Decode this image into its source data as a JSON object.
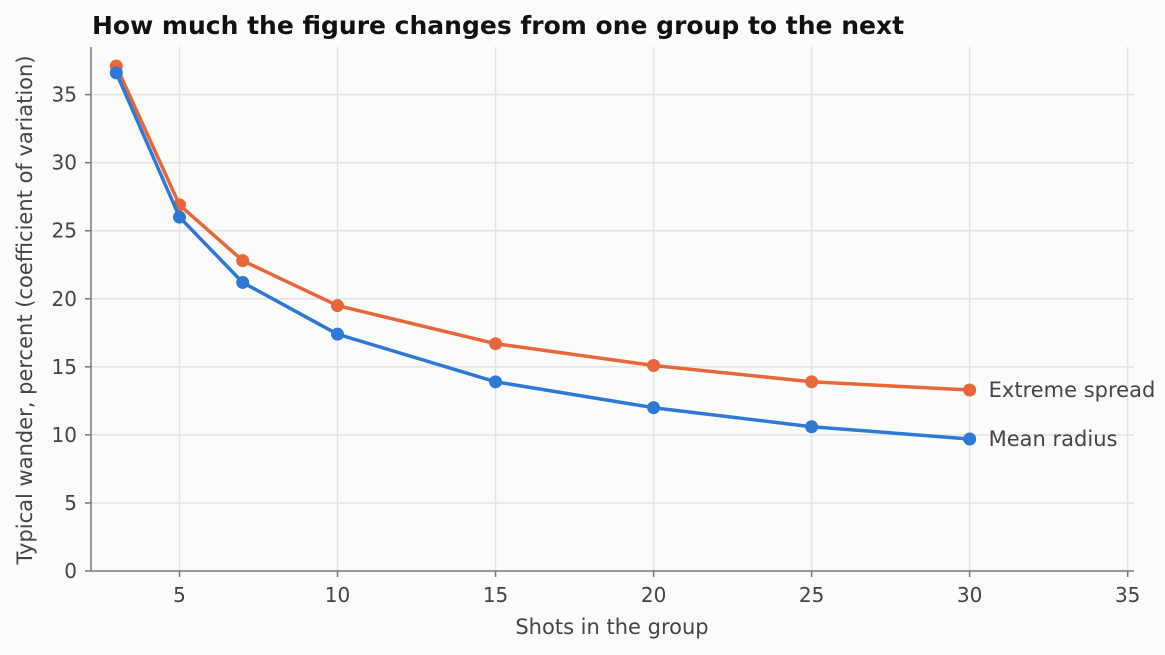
{
  "chart_data": {
    "type": "line",
    "title": "How much the figure changes from one group to the next",
    "xlabel": "Shots in the group",
    "ylabel": "Typical wander, percent (coefficient of variation)",
    "xlim": [
      2.2,
      35.2
    ],
    "ylim": [
      0,
      38.5
    ],
    "xticks": [
      5,
      10,
      15,
      20,
      25,
      30,
      35
    ],
    "yticks": [
      0,
      5,
      10,
      15,
      20,
      25,
      30,
      35
    ],
    "grid": true,
    "legend": "direct labels at line ends",
    "x": [
      3,
      5,
      7,
      10,
      15,
      20,
      25,
      30
    ],
    "series": [
      {
        "name": "Extreme spread",
        "color": "#e8673a",
        "values": [
          37.1,
          26.9,
          22.8,
          19.5,
          16.7,
          15.1,
          13.9,
          13.3
        ]
      },
      {
        "name": "Mean radius",
        "color": "#2e79d6",
        "values": [
          36.6,
          26.0,
          21.2,
          17.4,
          13.9,
          12.0,
          10.6,
          9.7
        ]
      }
    ]
  }
}
